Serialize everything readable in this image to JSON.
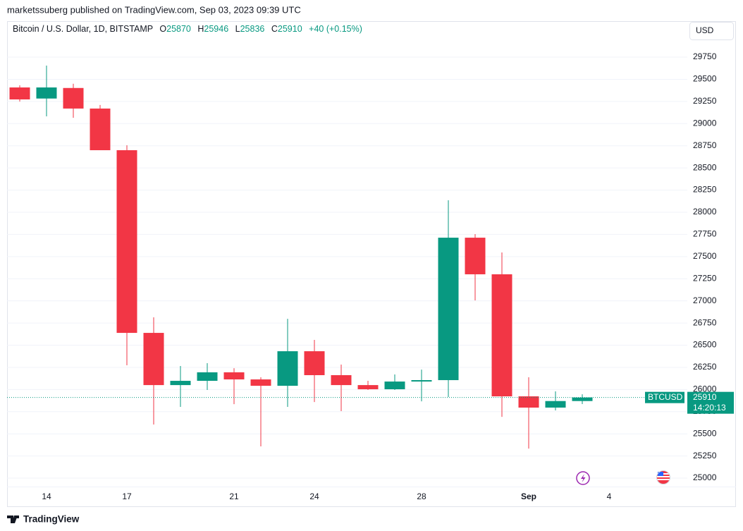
{
  "header": {
    "published": "marketssuberg published on TradingView.com, Sep 03, 2023 09:39 UTC"
  },
  "toolbar": {
    "currency": "USD"
  },
  "price_label": {
    "symbol": "BTCUSD",
    "countdown": "14:20:13"
  },
  "footer": {
    "brand": "TradingView"
  },
  "chart_data": {
    "type": "candlestick",
    "title": "Bitcoin / U.S. Dollar, 1D, BITSTAMP",
    "ohlc_labels": [
      "O",
      "H",
      "L",
      "C"
    ],
    "change": "+40 (+0.15%)",
    "categories": [
      null,
      "14",
      null,
      null,
      "17",
      null,
      null,
      null,
      "21",
      null,
      null,
      "24",
      null,
      null,
      null,
      "28",
      null,
      null,
      null,
      "Sep",
      null,
      null,
      "4"
    ],
    "open": [
      29408,
      29283,
      29402,
      29170,
      28700,
      26639,
      26050,
      26098,
      26194,
      26114,
      26042,
      26432,
      26162,
      26050,
      26003,
      26090,
      26106,
      27713,
      27300,
      25923,
      25796,
      25870,
      null
    ],
    "high": [
      29432,
      29655,
      29450,
      29210,
      28756,
      26814,
      26265,
      26297,
      26241,
      26138,
      26798,
      26560,
      26281,
      26098,
      26170,
      26225,
      28135,
      27753,
      27546,
      26138,
      25979,
      25946,
      null
    ],
    "low": [
      29249,
      29082,
      29066,
      28700,
      26273,
      25605,
      25804,
      25995,
      25835,
      25358,
      25804,
      25859,
      25756,
      25995,
      25995,
      25867,
      25915,
      27005,
      25692,
      25334,
      25764,
      25836,
      null
    ],
    "close": [
      29273,
      29408,
      29170,
      28700,
      26639,
      26050,
      26098,
      26194,
      26114,
      26042,
      26432,
      26162,
      26050,
      26003,
      26090,
      26106,
      27713,
      27300,
      25923,
      25796,
      25870,
      25910,
      null
    ],
    "up_color": "#089981",
    "down_color": "#f23645",
    "ylim": [
      24905,
      30156
    ],
    "yticks": [
      25000,
      25250,
      25500,
      25750,
      26000,
      26250,
      26500,
      26750,
      27000,
      27250,
      27500,
      27750,
      28000,
      28250,
      28500,
      28750,
      29000,
      29250,
      29500,
      29750
    ],
    "grid": true
  }
}
